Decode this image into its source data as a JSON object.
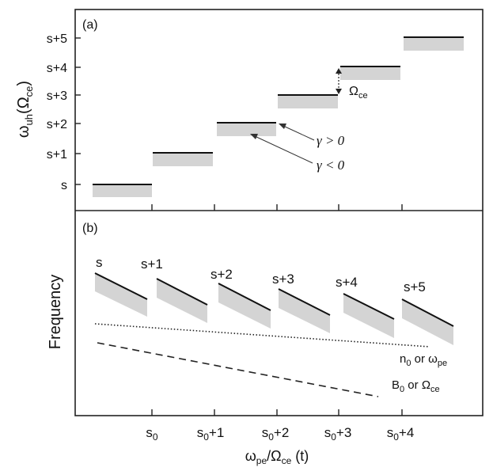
{
  "panel_a": {
    "label": "(a)",
    "ylabel_main": "ω",
    "ylabel_sub": "uh",
    "ylabel_unit": "(Ω",
    "ylabel_unit_sub": "ce",
    "ylabel_close": ")",
    "levels": [
      "s",
      "s+1",
      "s+2",
      "s+3",
      "s+4",
      "s+5"
    ],
    "gap_label_main": "Ω",
    "gap_label_sub": "ce",
    "gamma_pos": "γ > 0",
    "gamma_neg": "γ < 0"
  },
  "panel_b": {
    "label": "(b)",
    "ylabel": "Frequency",
    "band_labels": [
      "s",
      "s+1",
      "s+2",
      "s+3",
      "s+4",
      "s+5"
    ],
    "dotted_label_a": "n",
    "dotted_label_a_sub": "0",
    "dotted_label_b": " or ω",
    "dotted_label_b_sub": "pe",
    "dashed_label_a": "B",
    "dashed_label_a_sub": "0",
    "dashed_label_b": " or Ω",
    "dashed_label_b_sub": "ce",
    "xticks": [
      {
        "main": "s",
        "sub": "0",
        "suffix": ""
      },
      {
        "main": "s",
        "sub": "0",
        "suffix": "+1"
      },
      {
        "main": "s",
        "sub": "0",
        "suffix": "+2"
      },
      {
        "main": "s",
        "sub": "0",
        "suffix": "+3"
      },
      {
        "main": "s",
        "sub": "0",
        "suffix": "+4"
      }
    ],
    "xlabel_main": "ω",
    "xlabel_sub": "pe",
    "xlabel_mid": "/Ω",
    "xlabel_sub2": "ce",
    "xlabel_end": " (t)"
  },
  "colors": {
    "frame": "#222222",
    "shade": "#d4d4d4",
    "line": "#111111"
  }
}
